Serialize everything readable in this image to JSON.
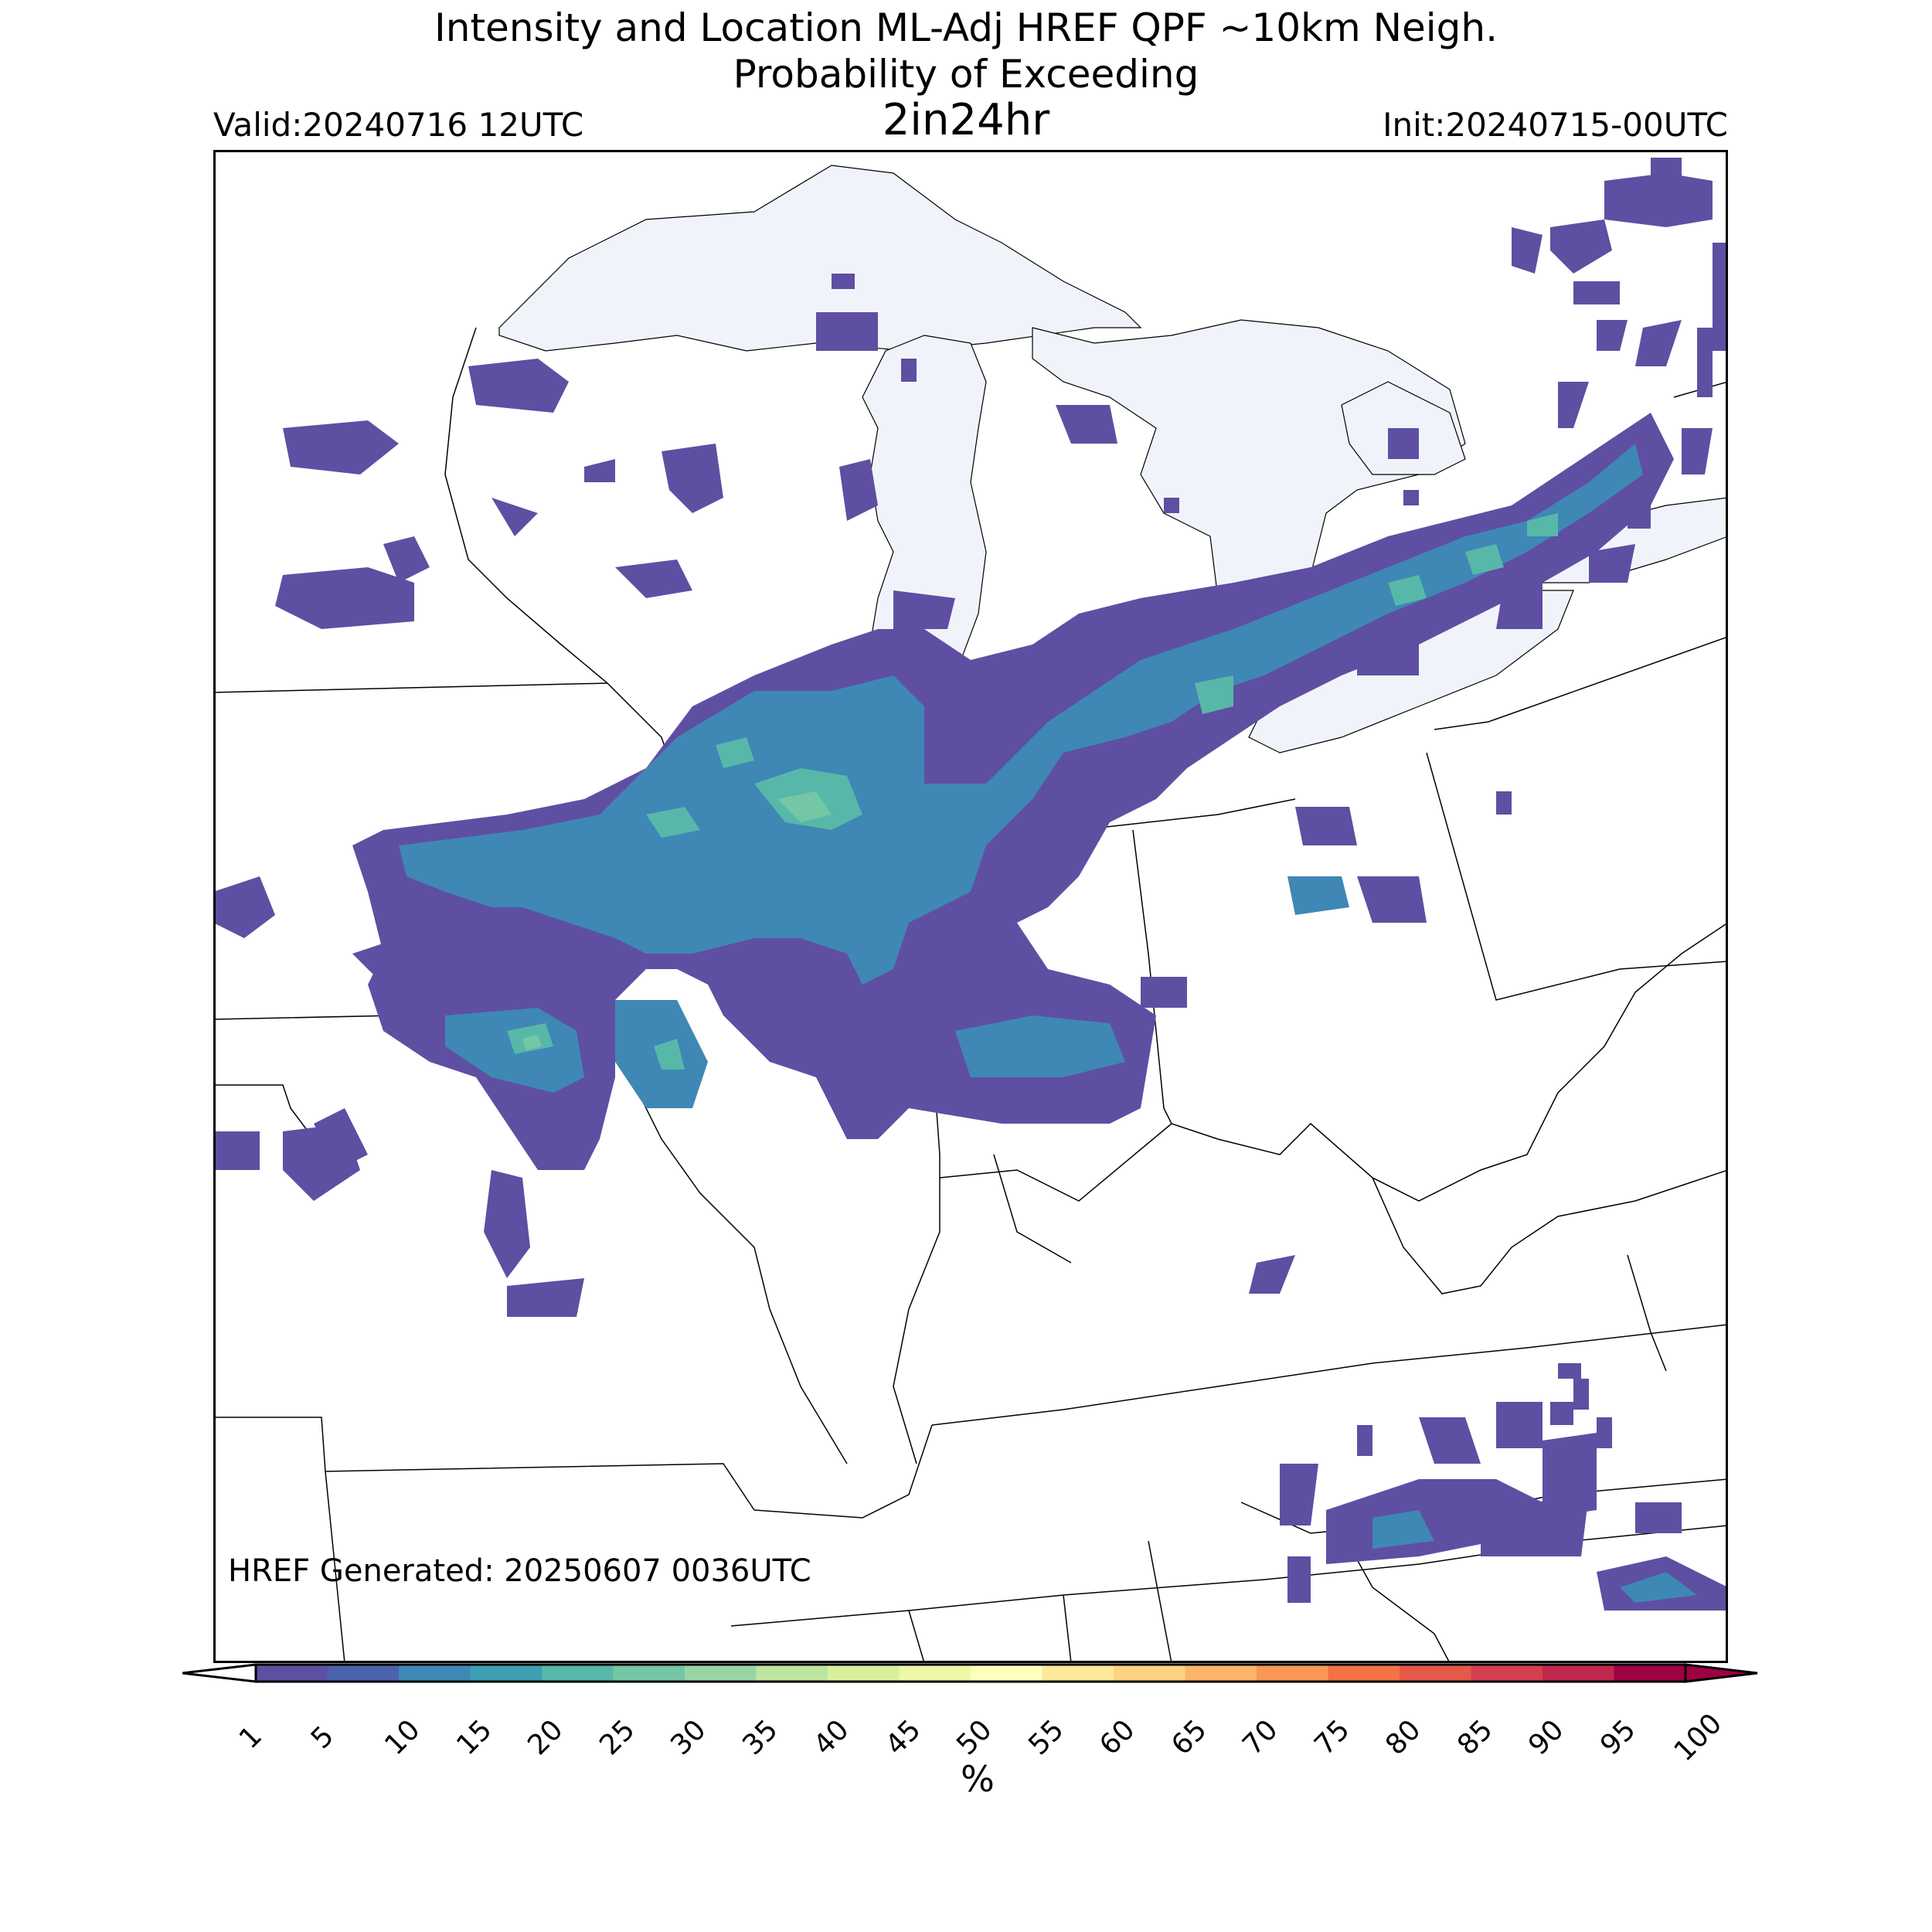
{
  "title": {
    "line1": "Intensity and Location ML-Adj HREF QPF ~10km Neigh.",
    "line2": "Probability of Exceeding",
    "line3": "2in24hr"
  },
  "valid": "Valid:20240716 12UTC",
  "init": "Init:20240715-00UTC",
  "generated": "HREF Generated: 20250607 0036UTC",
  "colorbar": {
    "unit": "%",
    "ticks": [
      "1",
      "5",
      "10",
      "15",
      "20",
      "25",
      "30",
      "35",
      "40",
      "45",
      "50",
      "55",
      "60",
      "65",
      "70",
      "75",
      "80",
      "85",
      "90",
      "95",
      "100"
    ],
    "colors": [
      "#5e4fa2",
      "#4b63ab",
      "#3f87b5",
      "#3d9fb4",
      "#57b8a9",
      "#74c7a5",
      "#98d5a4",
      "#bee5a0",
      "#d9f09b",
      "#eef8a6",
      "#fefebd",
      "#fee89a",
      "#fed380",
      "#fdb567",
      "#fa9656",
      "#f47245",
      "#e65848",
      "#d53e4f",
      "#c1264d",
      "#9e0142"
    ]
  },
  "chart_data": {
    "type": "heatmap",
    "title": "Intensity and Location ML-Adj HREF QPF ~10km Neigh. Probability of Exceeding 2in24hr",
    "unit": "%",
    "levels": [
      1,
      5,
      10,
      15,
      20,
      25,
      30,
      35,
      40,
      45,
      50,
      55,
      60,
      65,
      70,
      75,
      80,
      85,
      90,
      95,
      100
    ],
    "max_observed_approx": 35,
    "colors": {
      "lake": "#f0f4fa",
      "border": "#000000"
    }
  }
}
